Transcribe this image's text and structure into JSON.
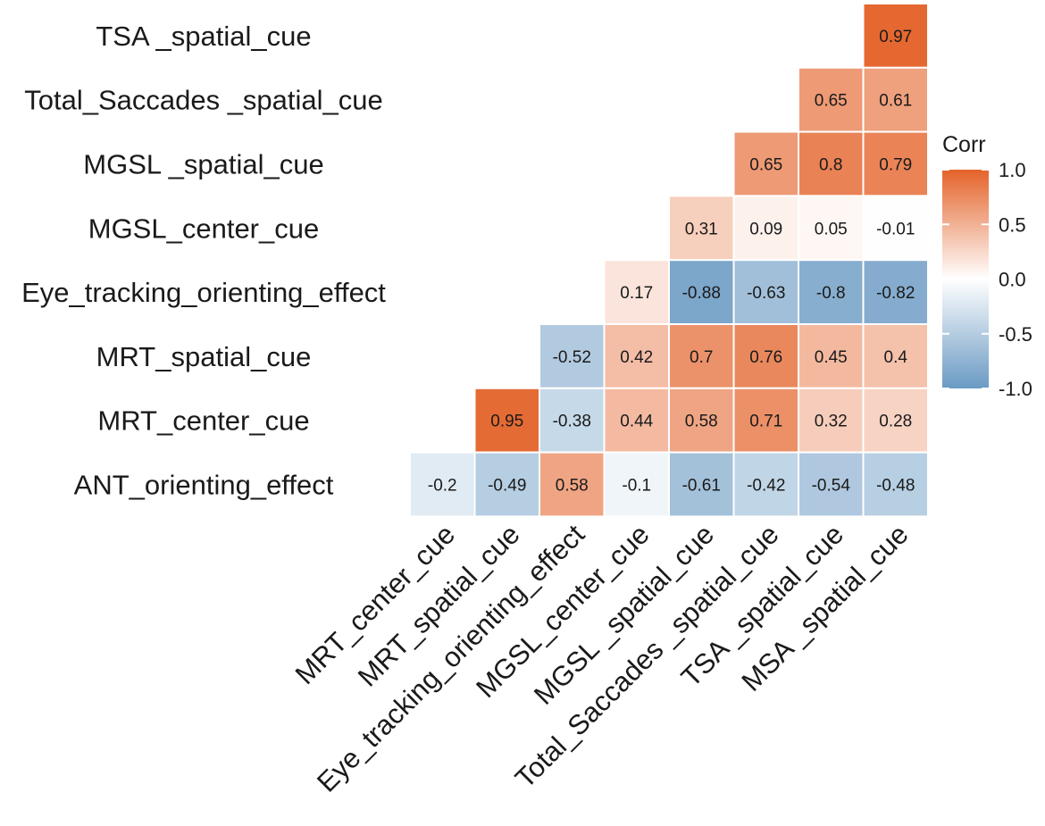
{
  "chart_data": {
    "type": "heatmap",
    "title": "",
    "rows": [
      "TSA _spatial_cue",
      "Total_Saccades _spatial_cue",
      "MGSL _spatial_cue",
      "MGSL_center_cue",
      "Eye_tracking_orienting_effect",
      "MRT_spatial_cue",
      "MRT_center_cue",
      "ANT_orienting_effect"
    ],
    "columns": [
      "MRT_center_cue",
      "MRT_spatial_cue",
      "Eye_tracking_orienting_effect",
      "MGSL_center_cue",
      "MGSL _spatial_cue",
      "Total_Saccades _spatial_cue",
      "TSA _spatial_cue",
      "MSA _spatial_cue"
    ],
    "values": [
      [
        null,
        null,
        null,
        null,
        null,
        null,
        null,
        0.97
      ],
      [
        null,
        null,
        null,
        null,
        null,
        null,
        0.65,
        0.61
      ],
      [
        null,
        null,
        null,
        null,
        null,
        0.65,
        0.8,
        0.79
      ],
      [
        null,
        null,
        null,
        null,
        0.31,
        0.09,
        0.05,
        -0.01
      ],
      [
        null,
        null,
        null,
        0.17,
        -0.88,
        -0.63,
        -0.8,
        -0.82
      ],
      [
        null,
        null,
        -0.52,
        0.42,
        0.7,
        0.76,
        0.45,
        0.4
      ],
      [
        null,
        0.95,
        -0.38,
        0.44,
        0.58,
        0.71,
        0.32,
        0.28
      ],
      [
        -0.2,
        -0.49,
        0.58,
        -0.1,
        -0.61,
        -0.42,
        -0.54,
        -0.48
      ]
    ],
    "cell_labels": [
      [
        "",
        "",
        "",
        "",
        "",
        "",
        "",
        "0.97"
      ],
      [
        "",
        "",
        "",
        "",
        "",
        "",
        "0.65",
        "0.61"
      ],
      [
        "",
        "",
        "",
        "",
        "",
        "0.65",
        "0.8",
        "0.79"
      ],
      [
        "",
        "",
        "",
        "",
        "0.31",
        "0.09",
        "0.05",
        "-0.01"
      ],
      [
        "",
        "",
        "",
        "0.17",
        "-0.88",
        "-0.63",
        "-0.8",
        "-0.82"
      ],
      [
        "",
        "",
        "-0.52",
        "0.42",
        "0.7",
        "0.76",
        "0.45",
        "0.4"
      ],
      [
        "",
        "0.95",
        "-0.38",
        "0.44",
        "0.58",
        "0.71",
        "0.32",
        "0.28"
      ],
      [
        "-0.2",
        "-0.49",
        "0.58",
        "-0.1",
        "-0.61",
        "-0.42",
        "-0.54",
        "-0.48"
      ]
    ],
    "legend": {
      "title": "Corr",
      "ticks": [
        "1.0",
        "0.5",
        "0.0",
        "-0.5",
        "-1.0"
      ],
      "tick_values": [
        1.0,
        0.5,
        0.0,
        -0.5,
        -1.0
      ],
      "range": [
        -1,
        1
      ],
      "position": "right"
    },
    "colors": {
      "high": "#E4632A",
      "mid": "#FFFFFF",
      "low": "#6A9AC3",
      "cell_border": "#FFFFFF"
    }
  }
}
